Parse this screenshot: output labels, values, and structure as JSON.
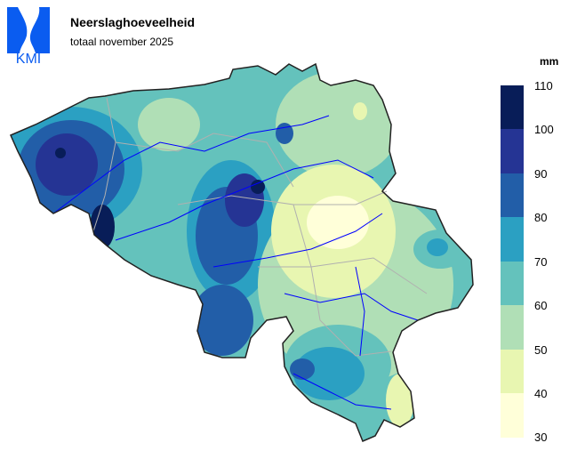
{
  "logo": {
    "text": "KMI",
    "color": "#0a5cf0"
  },
  "header": {
    "title": "Neerslaghoeveelheid",
    "subtitle": "totaal november 2025"
  },
  "legend": {
    "unit": "mm",
    "ticks": [
      "110",
      "100",
      "90",
      "80",
      "70",
      "60",
      "50",
      "40",
      "30"
    ],
    "bands": [
      {
        "range": "100-110",
        "color": "#081d58"
      },
      {
        "range": "90-100",
        "color": "#253494"
      },
      {
        "range": "80-90",
        "color": "#225ea8"
      },
      {
        "range": "70-80",
        "color": "#2ba0c2"
      },
      {
        "range": "60-70",
        "color": "#64c2bc"
      },
      {
        "range": "50-60",
        "color": "#b0dfb6"
      },
      {
        "range": "40-50",
        "color": "#e8f6b1"
      },
      {
        "range": "30-40",
        "color": "#ffffd9"
      }
    ]
  },
  "map": {
    "region": "Belgium",
    "river_color": "#0000ff",
    "border_color": "#b0b0b0",
    "outline_color": "#222222"
  }
}
